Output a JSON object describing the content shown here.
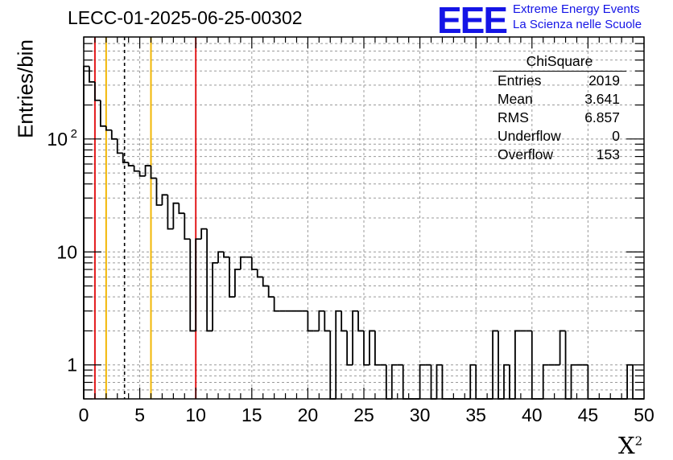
{
  "header": {
    "title": "LECC-01-2025-06-25-00302",
    "logo_text": "EEE",
    "org_line1": "Extreme Energy Events",
    "org_line2": "La Scienza nelle Scuole"
  },
  "stats_box": {
    "title": "ChiSquare",
    "rows": [
      {
        "label": "Entries",
        "value": "2019"
      },
      {
        "label": "Mean",
        "value": "3.641"
      },
      {
        "label": "RMS",
        "value": "6.857"
      },
      {
        "label": "Underflow",
        "value": "0"
      },
      {
        "label": "Overflow",
        "value": "153"
      }
    ]
  },
  "chart_data": {
    "type": "bar",
    "style": "step-histogram",
    "xlabel": "X",
    "xlabel_sup": "2",
    "ylabel": "Entries/bin",
    "xlim": [
      0,
      50
    ],
    "ylim": [
      0.5,
      800
    ],
    "yscale": "log",
    "grid": true,
    "bin_width": 0.5,
    "x_ticks": [
      "0",
      "5",
      "10",
      "15",
      "20",
      "25",
      "30",
      "35",
      "40",
      "45",
      "50"
    ],
    "y_ticks": [
      {
        "value": 1,
        "label": "1"
      },
      {
        "value": 10,
        "label": "10"
      },
      {
        "value": 100,
        "label": "10",
        "sup": "2"
      }
    ],
    "values": [
      440,
      320,
      220,
      130,
      120,
      100,
      75,
      62,
      58,
      52,
      47,
      58,
      45,
      26,
      32,
      16,
      27,
      22,
      13,
      2,
      13,
      16,
      2,
      8,
      10,
      9,
      4,
      7,
      9,
      9,
      7,
      6,
      5,
      4,
      3,
      3,
      3,
      3,
      3,
      3,
      2,
      2,
      3,
      2,
      0,
      3,
      2,
      1,
      3,
      2,
      1,
      2,
      1,
      1,
      0,
      1,
      1,
      0,
      0,
      0,
      1,
      1,
      0,
      1,
      0,
      0,
      0,
      0,
      0,
      1,
      0,
      0,
      0,
      2,
      0,
      1,
      0,
      2,
      2,
      2,
      0,
      0,
      1,
      1,
      1,
      2,
      0,
      1,
      1,
      1,
      0,
      0,
      0,
      0,
      0,
      0,
      0,
      1,
      0,
      0
    ],
    "vertical_lines": [
      {
        "x": 1,
        "color": "#e31a1c",
        "style": "solid"
      },
      {
        "x": 2,
        "color": "#f2b705",
        "style": "solid"
      },
      {
        "x": 3.641,
        "color": "#000000",
        "style": "dashed"
      },
      {
        "x": 6,
        "color": "#f2b705",
        "style": "solid"
      },
      {
        "x": 10,
        "color": "#e31a1c",
        "style": "solid"
      }
    ],
    "line_color": "#000000"
  }
}
